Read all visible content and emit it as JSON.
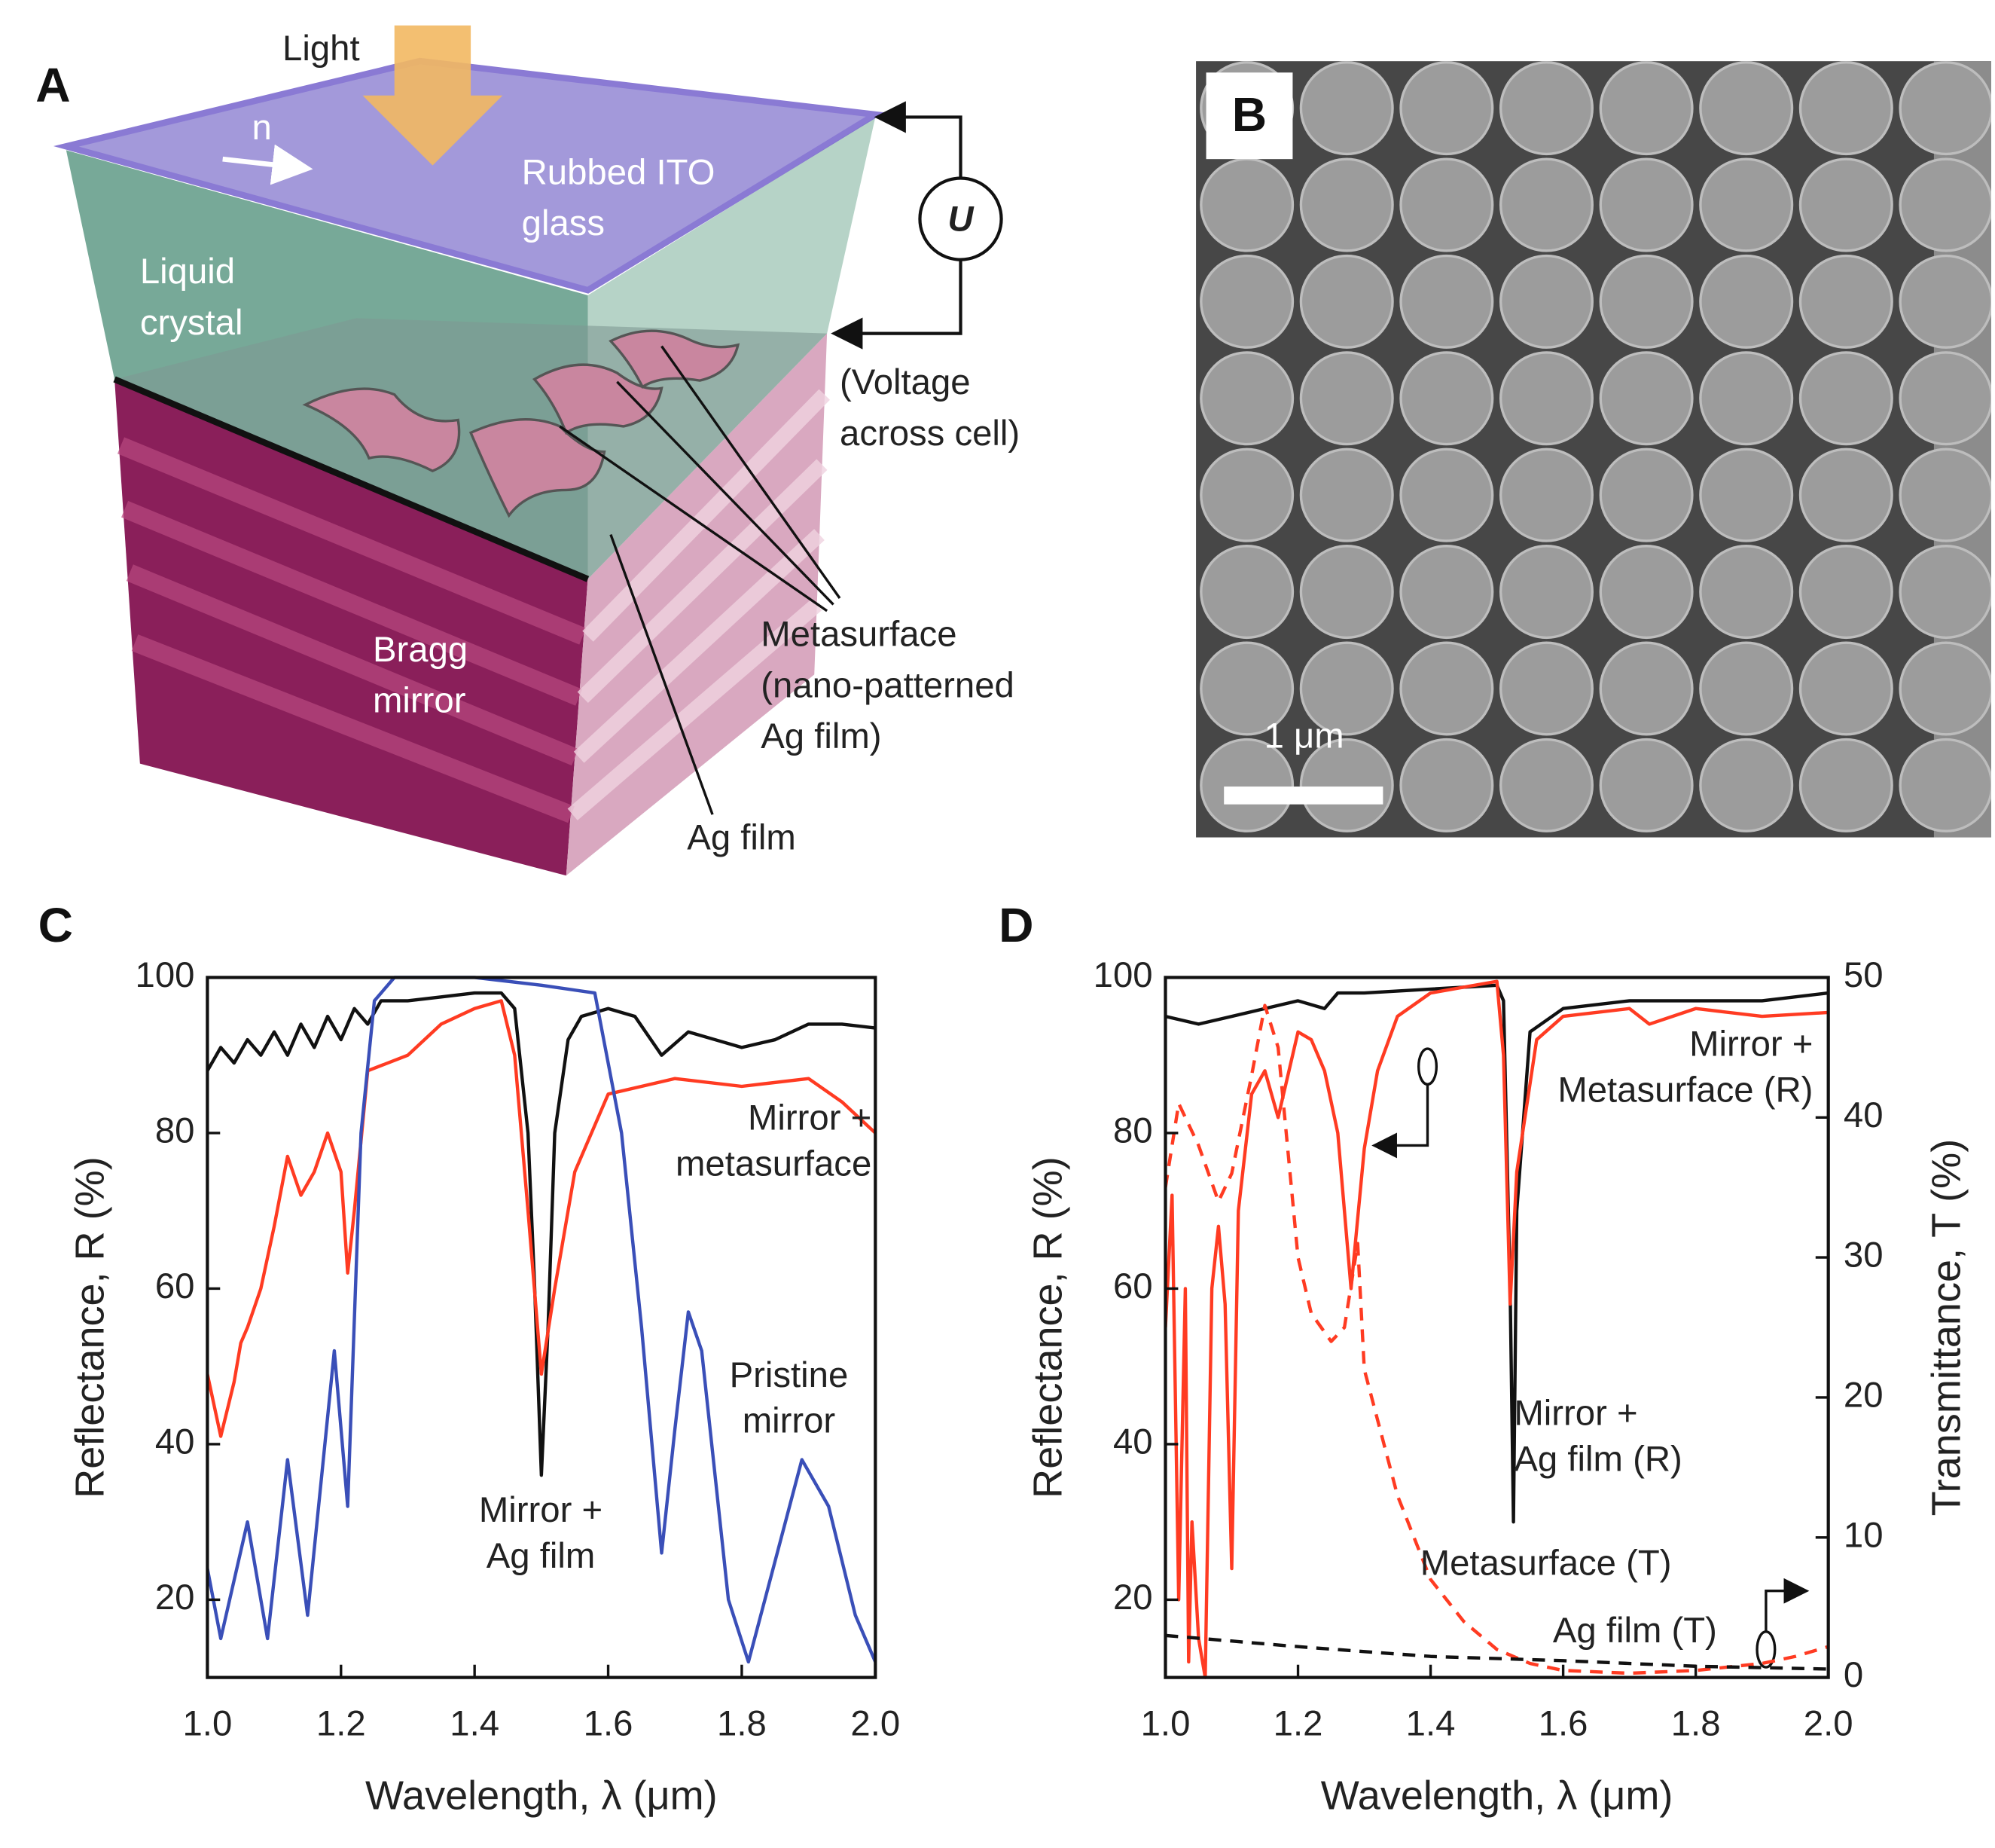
{
  "panel_a": {
    "label": "A",
    "light": "Light",
    "n": "n",
    "ito": "Rubbed ITO\nglass",
    "lc": "Liquid\ncrystal",
    "u": "U",
    "voltage": "(Voltage\nacross cell)",
    "metasurface": "Metasurface\n(nano-patterned\nAg film)",
    "bragg": "Bragg\nmirror",
    "ag_film": "Ag film"
  },
  "panel_b": {
    "label": "B",
    "scale_bar": "1 μm"
  },
  "chart_data": [
    {
      "type": "line",
      "panel_label": "C",
      "x_label": "Wavelength, λ (μm)",
      "y_label": "Reflectance, R (%)",
      "xlim": [
        1.0,
        2.0
      ],
      "xticks": [
        {
          "value": 1.0,
          "label": "1.0"
        },
        {
          "value": 1.2,
          "label": "1.2"
        },
        {
          "value": 1.4,
          "label": "1.4"
        },
        {
          "value": 1.6,
          "label": "1.6"
        },
        {
          "value": 1.8,
          "label": "1.8"
        },
        {
          "value": 2.0,
          "label": "2.0"
        }
      ],
      "ylim": [
        10,
        100
      ],
      "yticks": [
        20,
        40,
        60,
        80,
        100
      ],
      "series": [
        {
          "name": "Mirror +\nAg film",
          "color": "#111111",
          "dashed": false,
          "x": [
            1.0,
            1.02,
            1.04,
            1.06,
            1.08,
            1.1,
            1.12,
            1.14,
            1.16,
            1.18,
            1.2,
            1.22,
            1.24,
            1.26,
            1.3,
            1.35,
            1.4,
            1.44,
            1.46,
            1.48,
            1.49,
            1.5,
            1.51,
            1.52,
            1.54,
            1.56,
            1.6,
            1.64,
            1.68,
            1.72,
            1.76,
            1.8,
            1.85,
            1.9,
            1.95,
            2.0
          ],
          "values": [
            88,
            91,
            89,
            92,
            90,
            93,
            90,
            94,
            91,
            95,
            92,
            96,
            94,
            97,
            97,
            97.5,
            98,
            98,
            96,
            80,
            60,
            36,
            55,
            80,
            92,
            95,
            96,
            95,
            90,
            93,
            92,
            91,
            92,
            94,
            94,
            93.5
          ]
        },
        {
          "name": "Mirror +\nmetasurface",
          "color": "#ff3b22",
          "dashed": false,
          "x": [
            1.0,
            1.02,
            1.04,
            1.05,
            1.06,
            1.08,
            1.1,
            1.12,
            1.14,
            1.16,
            1.18,
            1.2,
            1.21,
            1.22,
            1.24,
            1.3,
            1.35,
            1.4,
            1.44,
            1.46,
            1.48,
            1.5,
            1.52,
            1.55,
            1.6,
            1.65,
            1.7,
            1.8,
            1.9,
            1.95,
            2.0
          ],
          "values": [
            49,
            41,
            48,
            53,
            55,
            60,
            68,
            77,
            72,
            75,
            80,
            75,
            62,
            70,
            88,
            90,
            94,
            96,
            97,
            90,
            70,
            49,
            60,
            75,
            85,
            86,
            87,
            86,
            87,
            84,
            80
          ]
        },
        {
          "name": "Pristine\nmirror",
          "color": "#3a4fb8",
          "dashed": false,
          "x": [
            1.0,
            1.02,
            1.06,
            1.09,
            1.12,
            1.15,
            1.19,
            1.21,
            1.23,
            1.25,
            1.28,
            1.4,
            1.5,
            1.58,
            1.62,
            1.65,
            1.68,
            1.7,
            1.72,
            1.74,
            1.78,
            1.81,
            1.85,
            1.89,
            1.93,
            1.97,
            2.0
          ],
          "values": [
            24,
            15,
            30,
            15,
            38,
            18,
            52,
            32,
            80,
            97,
            100,
            100,
            99,
            98,
            80,
            55,
            26,
            42,
            57,
            52,
            20,
            12,
            25,
            38,
            32,
            18,
            12
          ]
        }
      ]
    },
    {
      "type": "line",
      "panel_label": "D",
      "x_label": "Wavelength, λ (μm)",
      "y_label": "Reflectance, R (%)",
      "y2_label": "Transmittance, T (%)",
      "xlim": [
        1.0,
        2.0
      ],
      "xticks": [
        {
          "value": 1.0,
          "label": "1.0"
        },
        {
          "value": 1.2,
          "label": "1.2"
        },
        {
          "value": 1.4,
          "label": "1.4"
        },
        {
          "value": 1.6,
          "label": "1.6"
        },
        {
          "value": 1.8,
          "label": "1.8"
        },
        {
          "value": 2.0,
          "label": "2.0"
        }
      ],
      "ylim": [
        10,
        100
      ],
      "yticks": [
        20,
        40,
        60,
        80,
        100
      ],
      "y2lim": [
        0,
        50
      ],
      "y2ticks": [
        0,
        10,
        20,
        30,
        40,
        50
      ],
      "series": [
        {
          "name": "Mirror +\nAg film (R)",
          "color": "#111111",
          "dashed": false,
          "x": [
            1.0,
            1.05,
            1.1,
            1.15,
            1.2,
            1.24,
            1.26,
            1.3,
            1.4,
            1.5,
            1.51,
            1.52,
            1.525,
            1.53,
            1.55,
            1.6,
            1.7,
            1.8,
            1.9,
            2.0
          ],
          "values": [
            95,
            94,
            95,
            96,
            97,
            96,
            98,
            98,
            98.5,
            99,
            97,
            60,
            30,
            70,
            93,
            96,
            97,
            97,
            97,
            98
          ]
        },
        {
          "name": "Mirror +\nMetasurface (R)",
          "color": "#ff3b22",
          "dashed": false,
          "x": [
            1.0,
            1.01,
            1.02,
            1.03,
            1.035,
            1.04,
            1.05,
            1.06,
            1.07,
            1.08,
            1.09,
            1.1,
            1.11,
            1.13,
            1.15,
            1.17,
            1.2,
            1.22,
            1.24,
            1.26,
            1.28,
            1.3,
            1.32,
            1.35,
            1.4,
            1.5,
            1.51,
            1.52,
            1.53,
            1.56,
            1.6,
            1.7,
            1.73,
            1.8,
            1.9,
            2.0
          ],
          "values": [
            55,
            72,
            20,
            60,
            12,
            30,
            15,
            10,
            60,
            68,
            58,
            24,
            70,
            85,
            88,
            82,
            93,
            92,
            88,
            80,
            60,
            78,
            88,
            95,
            98,
            99.5,
            90,
            58,
            75,
            92,
            95,
            96,
            94,
            96,
            95,
            95.5
          ]
        },
        {
          "name": "Metasurface (T)",
          "color": "#ff3b22",
          "dashed": true,
          "axis": "y2",
          "x": [
            1.0,
            1.02,
            1.05,
            1.08,
            1.1,
            1.13,
            1.15,
            1.17,
            1.2,
            1.22,
            1.25,
            1.27,
            1.29,
            1.3,
            1.35,
            1.4,
            1.45,
            1.5,
            1.55,
            1.6,
            1.7,
            1.8,
            1.9,
            1.95,
            2.0
          ],
          "values": [
            35,
            41,
            38,
            34,
            36,
            43,
            48,
            45,
            30,
            26,
            24,
            25,
            31,
            22,
            13,
            7,
            4,
            2,
            1,
            0.5,
            0.3,
            0.5,
            1,
            1.5,
            2.2
          ]
        },
        {
          "name": "Ag film (T)",
          "color": "#111111",
          "dashed": true,
          "axis": "y2",
          "x": [
            1.0,
            1.2,
            1.4,
            1.6,
            1.8,
            2.0
          ],
          "values": [
            3,
            2.2,
            1.5,
            1.2,
            0.8,
            0.6
          ]
        }
      ]
    }
  ]
}
